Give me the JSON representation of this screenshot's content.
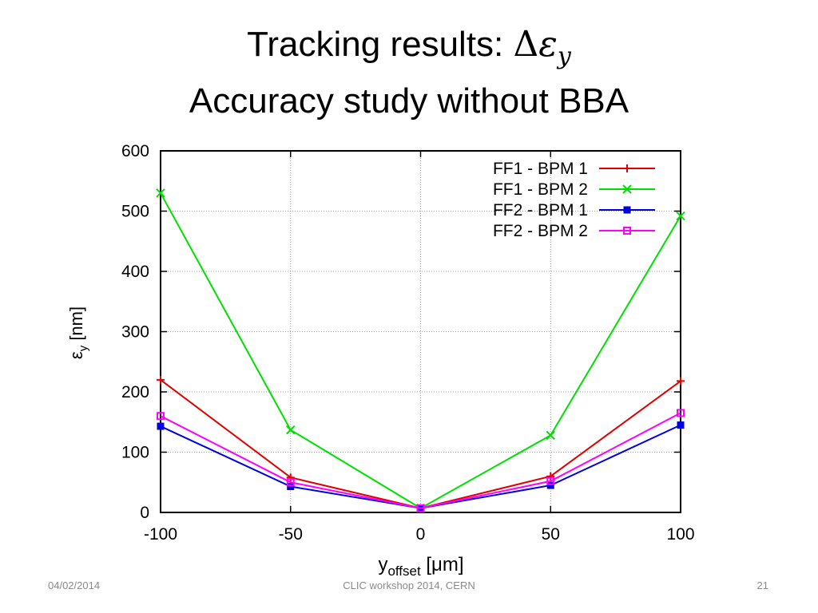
{
  "slide": {
    "title_line1_prefix": "Tracking results: ",
    "title_symbol": "Δεy",
    "title_line2": "Accuracy study without BBA",
    "footer_date": "04/02/2014",
    "footer_event": "CLIC workshop 2014, CERN",
    "page_number": "21"
  },
  "chart_data": {
    "type": "line",
    "title": "",
    "xlabel": "y_offset [μm]",
    "ylabel": "ε_y [nm]",
    "xlim": [
      -100,
      100
    ],
    "ylim": [
      0,
      600
    ],
    "xticks": [
      -100,
      -50,
      0,
      50,
      100
    ],
    "yticks": [
      0,
      100,
      200,
      300,
      400,
      500,
      600
    ],
    "grid": true,
    "legend_position": "top-right",
    "x": [
      -100,
      -50,
      0,
      50,
      100
    ],
    "series": [
      {
        "name": "FF1 - BPM 1",
        "color": "#e00000",
        "marker": "plus",
        "values": [
          220,
          58,
          7,
          60,
          218
        ]
      },
      {
        "name": "FF1 - BPM 2",
        "color": "#00e000",
        "marker": "cross",
        "values": [
          530,
          137,
          7,
          128,
          492
        ]
      },
      {
        "name": "FF2 - BPM 1",
        "color": "#0000e0",
        "marker": "filled-square",
        "values": [
          143,
          43,
          7,
          45,
          145
        ]
      },
      {
        "name": "FF2 - BPM 2",
        "color": "#ff00ff",
        "marker": "open-square",
        "values": [
          160,
          50,
          7,
          52,
          165
        ]
      }
    ]
  }
}
